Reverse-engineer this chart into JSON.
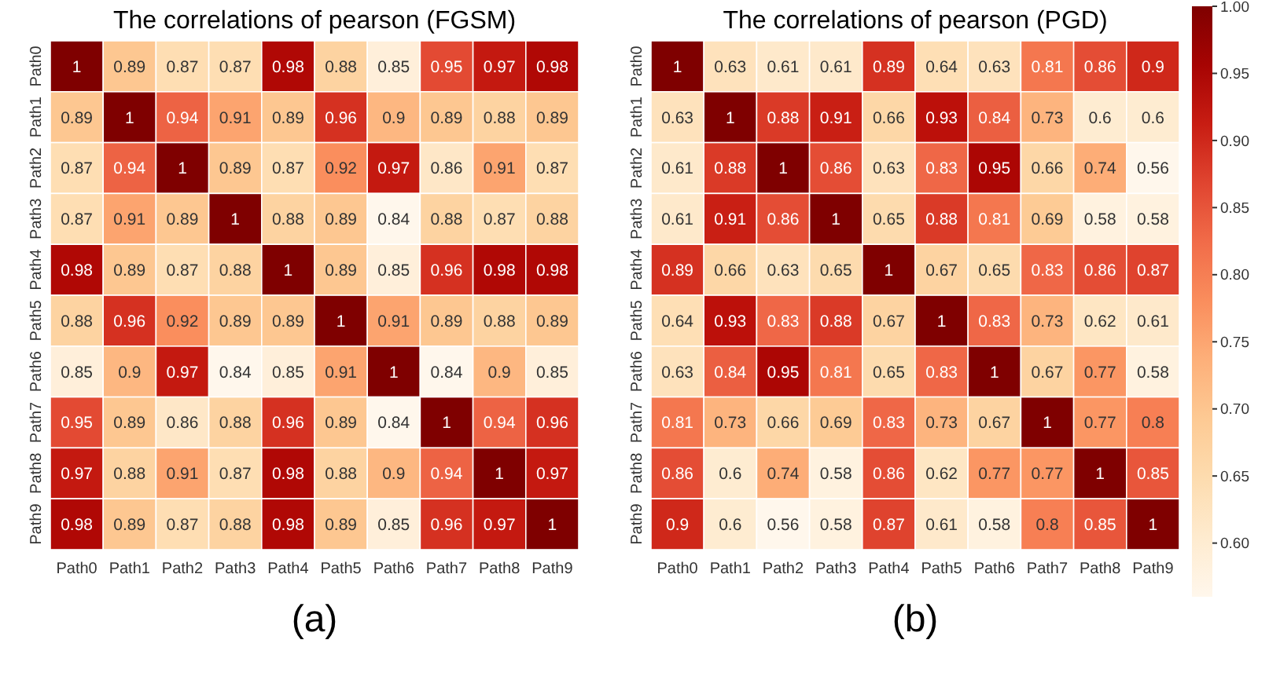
{
  "chart_data": [
    {
      "type": "heatmap",
      "title": "The correlations of pearson (FGSM)",
      "annotations": [
        "(a)"
      ],
      "categories": [
        "Path0",
        "Path1",
        "Path2",
        "Path3",
        "Path4",
        "Path5",
        "Path6",
        "Path7",
        "Path8",
        "Path9"
      ],
      "y_categories": [
        "Path0",
        "Path1",
        "Path2",
        "Path3",
        "Path4",
        "Path5",
        "Path6",
        "Path7",
        "Path8",
        "Path9"
      ],
      "data_labels": true,
      "cells": [
        [
          1,
          0.89,
          0.87,
          0.87,
          0.98,
          0.88,
          0.85,
          0.95,
          0.97,
          0.98
        ],
        [
          0.89,
          1,
          0.94,
          0.91,
          0.89,
          0.96,
          0.9,
          0.89,
          0.88,
          0.89
        ],
        [
          0.87,
          0.94,
          1,
          0.89,
          0.87,
          0.92,
          0.97,
          0.86,
          0.91,
          0.87
        ],
        [
          0.87,
          0.91,
          0.89,
          1,
          0.88,
          0.89,
          0.84,
          0.88,
          0.87,
          0.88
        ],
        [
          0.98,
          0.89,
          0.87,
          0.88,
          1,
          0.89,
          0.85,
          0.96,
          0.98,
          0.98
        ],
        [
          0.88,
          0.96,
          0.92,
          0.89,
          0.89,
          1,
          0.91,
          0.89,
          0.88,
          0.89
        ],
        [
          0.85,
          0.9,
          0.97,
          0.84,
          0.85,
          0.91,
          1,
          0.84,
          0.9,
          0.85
        ],
        [
          0.95,
          0.89,
          0.86,
          0.88,
          0.96,
          0.89,
          0.84,
          1,
          0.94,
          0.96
        ],
        [
          0.97,
          0.88,
          0.91,
          0.87,
          0.98,
          0.88,
          0.9,
          0.94,
          1,
          0.97
        ],
        [
          0.98,
          0.89,
          0.87,
          0.88,
          0.98,
          0.89,
          0.85,
          0.96,
          0.97,
          1
        ]
      ]
    },
    {
      "type": "heatmap",
      "title": "The correlations of pearson (PGD)",
      "annotations": [
        "(b)"
      ],
      "categories": [
        "Path0",
        "Path1",
        "Path2",
        "Path3",
        "Path4",
        "Path5",
        "Path6",
        "Path7",
        "Path8",
        "Path9"
      ],
      "y_categories": [
        "Path0",
        "Path1",
        "Path2",
        "Path3",
        "Path4",
        "Path5",
        "Path6",
        "Path7",
        "Path8",
        "Path9"
      ],
      "data_labels": true,
      "clim": [
        0.56,
        1.0
      ],
      "cticks": [
        {
          "value": 0.6,
          "label": "0.60"
        },
        {
          "value": 0.65,
          "label": "0.65"
        },
        {
          "value": 0.7,
          "label": "0.70"
        },
        {
          "value": 0.75,
          "label": "0.75"
        },
        {
          "value": 0.8,
          "label": "0.80"
        },
        {
          "value": 0.85,
          "label": "0.85"
        },
        {
          "value": 0.9,
          "label": "0.90"
        },
        {
          "value": 0.95,
          "label": "0.95"
        },
        {
          "value": 1.0,
          "label": "1.00"
        }
      ],
      "cells": [
        [
          1,
          0.63,
          0.61,
          0.61,
          0.89,
          0.64,
          0.63,
          0.81,
          0.86,
          0.9
        ],
        [
          0.63,
          1,
          0.88,
          0.91,
          0.66,
          0.93,
          0.84,
          0.73,
          0.6,
          0.6
        ],
        [
          0.61,
          0.88,
          1,
          0.86,
          0.63,
          0.83,
          0.95,
          0.66,
          0.74,
          0.56
        ],
        [
          0.61,
          0.91,
          0.86,
          1,
          0.65,
          0.88,
          0.81,
          0.69,
          0.58,
          0.58
        ],
        [
          0.89,
          0.66,
          0.63,
          0.65,
          1,
          0.67,
          0.65,
          0.83,
          0.86,
          0.87
        ],
        [
          0.64,
          0.93,
          0.83,
          0.88,
          0.67,
          1,
          0.83,
          0.73,
          0.62,
          0.61
        ],
        [
          0.63,
          0.84,
          0.95,
          0.81,
          0.65,
          0.83,
          1,
          0.67,
          0.77,
          0.58
        ],
        [
          0.81,
          0.73,
          0.66,
          0.69,
          0.83,
          0.73,
          0.67,
          1,
          0.77,
          0.8
        ],
        [
          0.86,
          0.6,
          0.74,
          0.58,
          0.86,
          0.62,
          0.77,
          0.77,
          1,
          0.85
        ],
        [
          0.9,
          0.6,
          0.56,
          0.58,
          0.87,
          0.61,
          0.58,
          0.8,
          0.85,
          1
        ]
      ]
    }
  ]
}
